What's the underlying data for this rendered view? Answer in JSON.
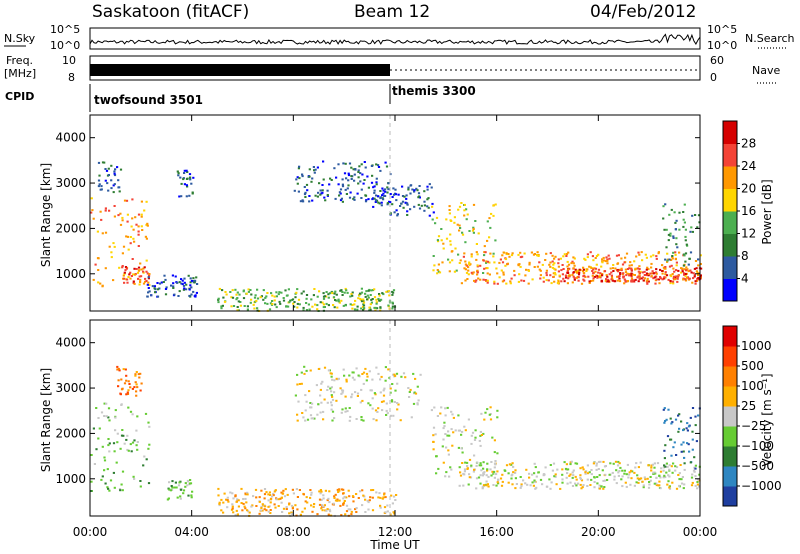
{
  "header": {
    "station": "Saskatoon (fitACF)",
    "beam": "Beam 12",
    "date": "04/Feb/2012"
  },
  "side_labels": {
    "nsky": "N.Sky",
    "freq_line1": "Freq.",
    "freq_line2": "[MHz]",
    "cpid": "CPID",
    "nsearch": "N.Search",
    "nave": "Nave"
  },
  "scales": {
    "nsky_top": "10^5",
    "nsky_bottom": "10^0",
    "freq_top": "10",
    "freq_bottom": "8",
    "nave_top": "60",
    "nave_bottom": "0"
  },
  "cpid_programs": [
    {
      "label": "twofsound 3501",
      "start_hour": 0,
      "end_hour": 12
    },
    {
      "label": "themis 3300",
      "start_hour": 12,
      "end_hour": 24
    }
  ],
  "chart_data": [
    {
      "type": "heatmap",
      "title": "",
      "ylabel": "Slant Range [km]",
      "xlabel": "",
      "xlim": [
        0,
        24
      ],
      "ylim": [
        180,
        4500
      ],
      "yticks": [
        1000,
        2000,
        3000,
        4000
      ],
      "colorbar": {
        "label": "Power [dB]",
        "ticks": [
          "4",
          "8",
          "12",
          "16",
          "20",
          "24",
          "28"
        ],
        "colors": [
          "#0000ff",
          "#2d5aa0",
          "#2e7d32",
          "#4caf50",
          "#ffd600",
          "#ff9800",
          "#f44336",
          "#d50000"
        ]
      },
      "echo_regions": [
        {
          "h0": 0.0,
          "h1": 2.3,
          "r0": 700,
          "r1": 2700,
          "level": 5
        },
        {
          "h0": 1.2,
          "h1": 2.3,
          "r0": 800,
          "r1": 1200,
          "level": 6
        },
        {
          "h0": 0.3,
          "h1": 1.2,
          "r0": 2800,
          "r1": 3500,
          "level": 1
        },
        {
          "h0": 2.2,
          "h1": 4.2,
          "r0": 500,
          "r1": 1000,
          "level": 1
        },
        {
          "h0": 3.4,
          "h1": 4.1,
          "r0": 2700,
          "r1": 3300,
          "level": 1
        },
        {
          "h0": 5.0,
          "h1": 12.0,
          "r0": 200,
          "r1": 700,
          "level": 3
        },
        {
          "h0": 8.0,
          "h1": 11.8,
          "r0": 2600,
          "r1": 3500,
          "level": 1
        },
        {
          "h0": 11.0,
          "h1": 13.5,
          "r0": 2300,
          "r1": 3000,
          "level": 1
        },
        {
          "h0": 13.4,
          "h1": 16.0,
          "r0": 1000,
          "r1": 2600,
          "level": 4
        },
        {
          "h0": 14.5,
          "h1": 24.0,
          "r0": 800,
          "r1": 1500,
          "level": 5
        },
        {
          "h0": 18.5,
          "h1": 24.0,
          "r0": 850,
          "r1": 1150,
          "level": 6
        },
        {
          "h0": 22.5,
          "h1": 24.0,
          "r0": 1200,
          "r1": 2600,
          "level": 2
        }
      ]
    },
    {
      "type": "heatmap",
      "title": "",
      "ylabel": "Slant Range [km]",
      "xlabel": "Time UT",
      "xlim": [
        0,
        24
      ],
      "ylim": [
        180,
        4500
      ],
      "yticks": [
        1000,
        2000,
        3000,
        4000
      ],
      "xticks": [
        "00:00",
        "04:00",
        "08:00",
        "12:00",
        "16:00",
        "20:00",
        "00:00"
      ],
      "colorbar": {
        "label": "Velocity [m s⁻¹]",
        "ticks": [
          "1000",
          "500",
          "100",
          "25",
          "−25",
          "−100",
          "−500",
          "−1000"
        ],
        "colors": [
          "#1f3fa0",
          "#2e86c1",
          "#2e7d32",
          "#66cc33",
          "#c8c8c8",
          "#ffb000",
          "#ff8000",
          "#ff4000",
          "#e00000"
        ]
      },
      "echo_regions": [
        {
          "h0": 0.0,
          "h1": 2.3,
          "r0": 700,
          "r1": 2700,
          "level": 3
        },
        {
          "h0": 1.0,
          "h1": 2.0,
          "r0": 2800,
          "r1": 3500,
          "level": 6
        },
        {
          "h0": 3.0,
          "h1": 4.0,
          "r0": 500,
          "r1": 1000,
          "level": 3
        },
        {
          "h0": 5.0,
          "h1": 12.0,
          "r0": 200,
          "r1": 800,
          "level": 5
        },
        {
          "h0": 8.0,
          "h1": 13.0,
          "r0": 2300,
          "r1": 3500,
          "level": 4
        },
        {
          "h0": 13.4,
          "h1": 16.0,
          "r0": 1000,
          "r1": 2600,
          "level": 4
        },
        {
          "h0": 14.5,
          "h1": 24.0,
          "r0": 800,
          "r1": 1400,
          "level": 4
        },
        {
          "h0": 22.5,
          "h1": 24.0,
          "r0": 1200,
          "r1": 2600,
          "level": 1
        }
      ]
    }
  ]
}
